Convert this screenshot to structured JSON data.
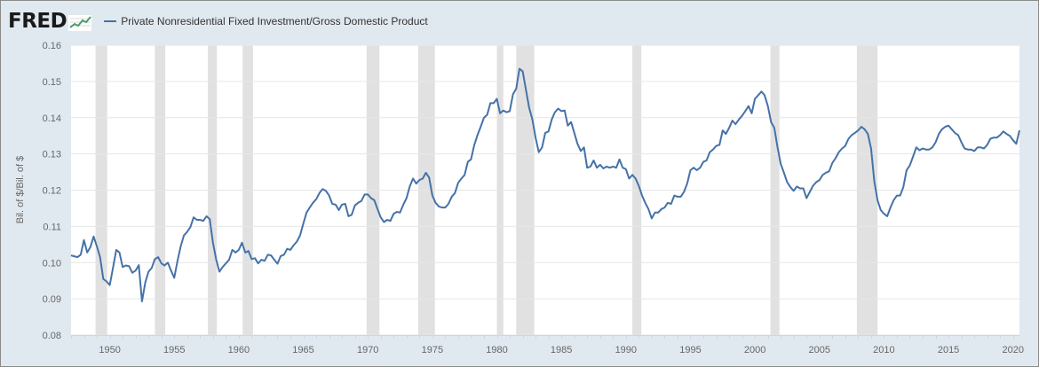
{
  "header": {
    "logo_text": "FRED"
  },
  "chart_data": {
    "type": "line",
    "title": "",
    "xlabel": "",
    "ylabel": "Bil. of $/Bil. of $",
    "series": [
      {
        "name": "Private Nonresidential Fixed Investment/Gross Domestic Product",
        "color": "#4572a7"
      }
    ],
    "ylim": [
      0.08,
      0.16
    ],
    "yticks": [
      "0.08",
      "0.09",
      "0.10",
      "0.11",
      "0.12",
      "0.13",
      "0.14",
      "0.15",
      "0.16"
    ],
    "xlim": [
      1947.0,
      2020.5
    ],
    "xticks": [
      "1950",
      "1955",
      "1960",
      "1965",
      "1970",
      "1975",
      "1980",
      "1985",
      "1990",
      "1995",
      "2000",
      "2005",
      "2010",
      "2015",
      "2020"
    ],
    "recessions": [
      [
        1948.9,
        1949.8
      ],
      [
        1953.5,
        1954.3
      ],
      [
        1957.6,
        1958.3
      ],
      [
        1960.3,
        1961.1
      ],
      [
        1969.9,
        1970.9
      ],
      [
        1973.9,
        1975.2
      ],
      [
        1980.0,
        1980.5
      ],
      [
        1981.5,
        1982.9
      ],
      [
        1990.5,
        1991.2
      ],
      [
        2001.2,
        2001.9
      ],
      [
        2007.9,
        2009.5
      ]
    ],
    "recession_color": "#e1e1e1",
    "grid": true,
    "points": [
      [
        1947.0,
        0.102
      ],
      [
        1947.5,
        0.1015
      ],
      [
        1947.75,
        0.1022
      ],
      [
        1948.0,
        0.1062
      ],
      [
        1948.25,
        0.1028
      ],
      [
        1948.5,
        0.1043
      ],
      [
        1948.75,
        0.1072
      ],
      [
        1949.0,
        0.1045
      ],
      [
        1949.25,
        0.1015
      ],
      [
        1949.5,
        0.0955
      ],
      [
        1949.75,
        0.0948
      ],
      [
        1950.0,
        0.0938
      ],
      [
        1950.25,
        0.0985
      ],
      [
        1950.5,
        0.1035
      ],
      [
        1950.75,
        0.1028
      ],
      [
        1951.0,
        0.0988
      ],
      [
        1951.25,
        0.0992
      ],
      [
        1951.5,
        0.099
      ],
      [
        1951.75,
        0.0972
      ],
      [
        1952.0,
        0.0978
      ],
      [
        1952.25,
        0.0993
      ],
      [
        1952.5,
        0.0893
      ],
      [
        1952.75,
        0.0945
      ],
      [
        1953.0,
        0.0975
      ],
      [
        1953.25,
        0.0985
      ],
      [
        1953.5,
        0.101
      ],
      [
        1953.75,
        0.1015
      ],
      [
        1954.0,
        0.0998
      ],
      [
        1954.25,
        0.0992
      ],
      [
        1954.5,
        0.1
      ],
      [
        1954.75,
        0.0978
      ],
      [
        1955.0,
        0.0958
      ],
      [
        1955.25,
        0.1005
      ],
      [
        1955.5,
        0.1045
      ],
      [
        1955.75,
        0.1075
      ],
      [
        1956.0,
        0.1085
      ],
      [
        1956.25,
        0.1098
      ],
      [
        1956.5,
        0.1125
      ],
      [
        1956.75,
        0.1118
      ],
      [
        1957.0,
        0.1118
      ],
      [
        1957.25,
        0.1115
      ],
      [
        1957.5,
        0.1128
      ],
      [
        1957.75,
        0.112
      ],
      [
        1958.0,
        0.1055
      ],
      [
        1958.25,
        0.1008
      ],
      [
        1958.5,
        0.0975
      ],
      [
        1958.75,
        0.0988
      ],
      [
        1959.0,
        0.0998
      ],
      [
        1959.25,
        0.1008
      ],
      [
        1959.5,
        0.1035
      ],
      [
        1959.75,
        0.1028
      ],
      [
        1960.0,
        0.1035
      ],
      [
        1960.25,
        0.1055
      ],
      [
        1960.5,
        0.1028
      ],
      [
        1960.75,
        0.1032
      ],
      [
        1961.0,
        0.101
      ],
      [
        1961.25,
        0.1012
      ],
      [
        1961.5,
        0.0998
      ],
      [
        1961.75,
        0.1008
      ],
      [
        1962.0,
        0.1005
      ],
      [
        1962.25,
        0.1022
      ],
      [
        1962.5,
        0.102
      ],
      [
        1962.75,
        0.1008
      ],
      [
        1963.0,
        0.0997
      ],
      [
        1963.25,
        0.1018
      ],
      [
        1963.5,
        0.1022
      ],
      [
        1963.75,
        0.1038
      ],
      [
        1964.0,
        0.1035
      ],
      [
        1964.25,
        0.1048
      ],
      [
        1964.5,
        0.1058
      ],
      [
        1964.75,
        0.1075
      ],
      [
        1965.0,
        0.1108
      ],
      [
        1965.25,
        0.1138
      ],
      [
        1965.5,
        0.1152
      ],
      [
        1965.75,
        0.1165
      ],
      [
        1966.0,
        0.1175
      ],
      [
        1966.25,
        0.1192
      ],
      [
        1966.5,
        0.1203
      ],
      [
        1966.75,
        0.1198
      ],
      [
        1967.0,
        0.1185
      ],
      [
        1967.25,
        0.1162
      ],
      [
        1967.5,
        0.116
      ],
      [
        1967.75,
        0.1145
      ],
      [
        1968.0,
        0.116
      ],
      [
        1968.25,
        0.1162
      ],
      [
        1968.5,
        0.1128
      ],
      [
        1968.75,
        0.1132
      ],
      [
        1969.0,
        0.1158
      ],
      [
        1969.25,
        0.1165
      ],
      [
        1969.5,
        0.117
      ],
      [
        1969.75,
        0.1188
      ],
      [
        1970.0,
        0.1188
      ],
      [
        1970.25,
        0.1178
      ],
      [
        1970.5,
        0.1172
      ],
      [
        1970.75,
        0.1148
      ],
      [
        1971.0,
        0.1125
      ],
      [
        1971.25,
        0.1112
      ],
      [
        1971.5,
        0.1118
      ],
      [
        1971.75,
        0.1115
      ],
      [
        1972.0,
        0.1135
      ],
      [
        1972.25,
        0.114
      ],
      [
        1972.5,
        0.1138
      ],
      [
        1972.75,
        0.116
      ],
      [
        1973.0,
        0.1178
      ],
      [
        1973.25,
        0.121
      ],
      [
        1973.5,
        0.1232
      ],
      [
        1973.75,
        0.1218
      ],
      [
        1974.0,
        0.1228
      ],
      [
        1974.25,
        0.1232
      ],
      [
        1974.5,
        0.1248
      ],
      [
        1974.75,
        0.1235
      ],
      [
        1975.0,
        0.1185
      ],
      [
        1975.25,
        0.1165
      ],
      [
        1975.5,
        0.1155
      ],
      [
        1975.75,
        0.1152
      ],
      [
        1976.0,
        0.1152
      ],
      [
        1976.25,
        0.1162
      ],
      [
        1976.5,
        0.1182
      ],
      [
        1976.75,
        0.1192
      ],
      [
        1977.0,
        0.122
      ],
      [
        1977.25,
        0.1232
      ],
      [
        1977.5,
        0.1242
      ],
      [
        1977.75,
        0.1278
      ],
      [
        1978.0,
        0.1285
      ],
      [
        1978.25,
        0.1325
      ],
      [
        1978.5,
        0.1352
      ],
      [
        1978.75,
        0.1375
      ],
      [
        1979.0,
        0.14
      ],
      [
        1979.25,
        0.1408
      ],
      [
        1979.5,
        0.144
      ],
      [
        1979.75,
        0.144
      ],
      [
        1980.0,
        0.1452
      ],
      [
        1980.25,
        0.1412
      ],
      [
        1980.5,
        0.142
      ],
      [
        1980.75,
        0.1415
      ],
      [
        1981.0,
        0.1418
      ],
      [
        1981.25,
        0.1465
      ],
      [
        1981.5,
        0.148
      ],
      [
        1981.75,
        0.1535
      ],
      [
        1982.0,
        0.1528
      ],
      [
        1982.25,
        0.1478
      ],
      [
        1982.5,
        0.1428
      ],
      [
        1982.75,
        0.1395
      ],
      [
        1983.0,
        0.1345
      ],
      [
        1983.25,
        0.1305
      ],
      [
        1983.5,
        0.1318
      ],
      [
        1983.75,
        0.1358
      ],
      [
        1984.0,
        0.1362
      ],
      [
        1984.25,
        0.1395
      ],
      [
        1984.5,
        0.1415
      ],
      [
        1984.75,
        0.1425
      ],
      [
        1985.0,
        0.1418
      ],
      [
        1985.25,
        0.142
      ],
      [
        1985.5,
        0.1378
      ],
      [
        1985.75,
        0.1388
      ],
      [
        1986.0,
        0.1358
      ],
      [
        1986.25,
        0.1328
      ],
      [
        1986.5,
        0.1308
      ],
      [
        1986.75,
        0.1318
      ],
      [
        1987.0,
        0.1262
      ],
      [
        1987.25,
        0.1265
      ],
      [
        1987.5,
        0.1282
      ],
      [
        1987.75,
        0.1262
      ],
      [
        1988.0,
        0.127
      ],
      [
        1988.25,
        0.126
      ],
      [
        1988.5,
        0.1265
      ],
      [
        1988.75,
        0.1262
      ],
      [
        1989.0,
        0.1265
      ],
      [
        1989.25,
        0.1262
      ],
      [
        1989.5,
        0.1285
      ],
      [
        1989.75,
        0.1262
      ],
      [
        1990.0,
        0.1258
      ],
      [
        1990.25,
        0.1232
      ],
      [
        1990.5,
        0.1242
      ],
      [
        1990.75,
        0.1232
      ],
      [
        1991.0,
        0.1212
      ],
      [
        1991.25,
        0.1185
      ],
      [
        1991.5,
        0.1165
      ],
      [
        1991.75,
        0.1148
      ],
      [
        1992.0,
        0.1122
      ],
      [
        1992.25,
        0.1138
      ],
      [
        1992.5,
        0.1138
      ],
      [
        1992.75,
        0.1148
      ],
      [
        1993.0,
        0.1152
      ],
      [
        1993.25,
        0.1165
      ],
      [
        1993.5,
        0.1162
      ],
      [
        1993.75,
        0.1185
      ],
      [
        1994.0,
        0.1182
      ],
      [
        1994.25,
        0.1182
      ],
      [
        1994.5,
        0.1195
      ],
      [
        1994.75,
        0.1218
      ],
      [
        1995.0,
        0.1255
      ],
      [
        1995.25,
        0.1262
      ],
      [
        1995.5,
        0.1255
      ],
      [
        1995.75,
        0.1262
      ],
      [
        1996.0,
        0.1278
      ],
      [
        1996.25,
        0.1282
      ],
      [
        1996.5,
        0.1305
      ],
      [
        1996.75,
        0.1312
      ],
      [
        1997.0,
        0.1322
      ],
      [
        1997.25,
        0.1325
      ],
      [
        1997.5,
        0.1365
      ],
      [
        1997.75,
        0.1355
      ],
      [
        1998.0,
        0.1372
      ],
      [
        1998.25,
        0.1392
      ],
      [
        1998.5,
        0.1382
      ],
      [
        1998.75,
        0.1395
      ],
      [
        1999.0,
        0.1405
      ],
      [
        1999.25,
        0.1418
      ],
      [
        1999.5,
        0.1432
      ],
      [
        1999.75,
        0.1412
      ],
      [
        2000.0,
        0.1452
      ],
      [
        2000.25,
        0.1462
      ],
      [
        2000.5,
        0.1472
      ],
      [
        2000.75,
        0.1462
      ],
      [
        2001.0,
        0.1432
      ],
      [
        2001.25,
        0.1388
      ],
      [
        2001.5,
        0.1372
      ],
      [
        2001.75,
        0.1318
      ],
      [
        2002.0,
        0.1272
      ],
      [
        2002.25,
        0.1248
      ],
      [
        2002.5,
        0.1222
      ],
      [
        2002.75,
        0.1208
      ],
      [
        2003.0,
        0.1198
      ],
      [
        2003.25,
        0.121
      ],
      [
        2003.5,
        0.1205
      ],
      [
        2003.75,
        0.1205
      ],
      [
        2004.0,
        0.1178
      ],
      [
        2004.25,
        0.1195
      ],
      [
        2004.5,
        0.1212
      ],
      [
        2004.75,
        0.1222
      ],
      [
        2005.0,
        0.1228
      ],
      [
        2005.25,
        0.1242
      ],
      [
        2005.5,
        0.1248
      ],
      [
        2005.75,
        0.1252
      ],
      [
        2006.0,
        0.1275
      ],
      [
        2006.25,
        0.1288
      ],
      [
        2006.5,
        0.1305
      ],
      [
        2006.75,
        0.1315
      ],
      [
        2007.0,
        0.1322
      ],
      [
        2007.25,
        0.1342
      ],
      [
        2007.5,
        0.1352
      ],
      [
        2007.75,
        0.1358
      ],
      [
        2008.0,
        0.1365
      ],
      [
        2008.25,
        0.1375
      ],
      [
        2008.5,
        0.1368
      ],
      [
        2008.75,
        0.1355
      ],
      [
        2009.0,
        0.1315
      ],
      [
        2009.25,
        0.1225
      ],
      [
        2009.5,
        0.1172
      ],
      [
        2009.75,
        0.1145
      ],
      [
        2010.0,
        0.1135
      ],
      [
        2010.25,
        0.1128
      ],
      [
        2010.5,
        0.1152
      ],
      [
        2010.75,
        0.1172
      ],
      [
        2011.0,
        0.1185
      ],
      [
        2011.25,
        0.1185
      ],
      [
        2011.5,
        0.1208
      ],
      [
        2011.75,
        0.1255
      ],
      [
        2012.0,
        0.1268
      ],
      [
        2012.25,
        0.1292
      ],
      [
        2012.5,
        0.1318
      ],
      [
        2012.75,
        0.131
      ],
      [
        2013.0,
        0.1315
      ],
      [
        2013.25,
        0.1312
      ],
      [
        2013.5,
        0.1312
      ],
      [
        2013.75,
        0.1318
      ],
      [
        2014.0,
        0.1332
      ],
      [
        2014.25,
        0.1355
      ],
      [
        2014.5,
        0.1368
      ],
      [
        2014.75,
        0.1375
      ],
      [
        2015.0,
        0.1378
      ],
      [
        2015.25,
        0.1368
      ],
      [
        2015.5,
        0.1358
      ],
      [
        2015.75,
        0.1352
      ],
      [
        2016.0,
        0.1332
      ],
      [
        2016.25,
        0.1315
      ],
      [
        2016.5,
        0.1312
      ],
      [
        2016.75,
        0.1312
      ],
      [
        2017.0,
        0.1308
      ],
      [
        2017.25,
        0.1318
      ],
      [
        2017.5,
        0.1318
      ],
      [
        2017.75,
        0.1315
      ],
      [
        2018.0,
        0.1325
      ],
      [
        2018.25,
        0.1342
      ],
      [
        2018.5,
        0.1345
      ],
      [
        2018.75,
        0.1345
      ],
      [
        2019.0,
        0.1352
      ],
      [
        2019.25,
        0.1362
      ],
      [
        2019.5,
        0.1355
      ],
      [
        2019.75,
        0.135
      ],
      [
        2020.0,
        0.1338
      ],
      [
        2020.25,
        0.1328
      ],
      [
        2020.5,
        0.1365
      ]
    ]
  }
}
